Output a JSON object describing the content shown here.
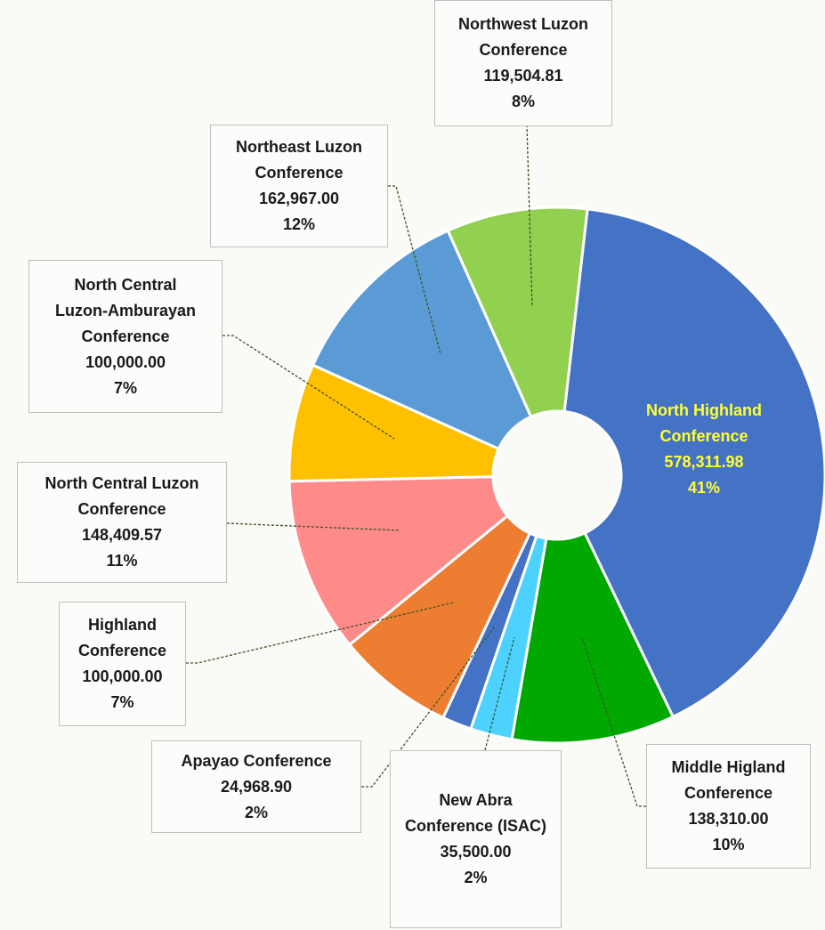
{
  "chart_data": {
    "type": "pie",
    "donut": true,
    "categories": [
      "North Highland Conference",
      "Middle Higland Conference",
      "New Abra Conference (ISAC)",
      "Apayao Conference",
      "Highland Conference",
      "North Central Luzon Conference",
      "North Central Luzon-Amburayan Conference",
      "Northeast Luzon Conference",
      "Northwest Luzon Conference"
    ],
    "values": [
      578311.98,
      138310.0,
      35500.0,
      24968.9,
      100000.0,
      148409.57,
      100000.0,
      162967.0,
      119504.81
    ],
    "value_labels": [
      "578,311.98",
      "138,310.00",
      "35,500.00",
      "24,968.90",
      "100,000.00",
      "148,409.57",
      "100,000.00",
      "162,967.00",
      "119,504.81"
    ],
    "percent_labels": [
      "41%",
      "10%",
      "2%",
      "2%",
      "7%",
      "11%",
      "7%",
      "12%",
      "8%"
    ],
    "colors": [
      "#4472c4",
      "#00a800",
      "#4dd2ff",
      "#4472c4",
      "#ed7d31",
      "#ff8a8a",
      "#ffc000",
      "#5b9bd5",
      "#92d050"
    ]
  }
}
